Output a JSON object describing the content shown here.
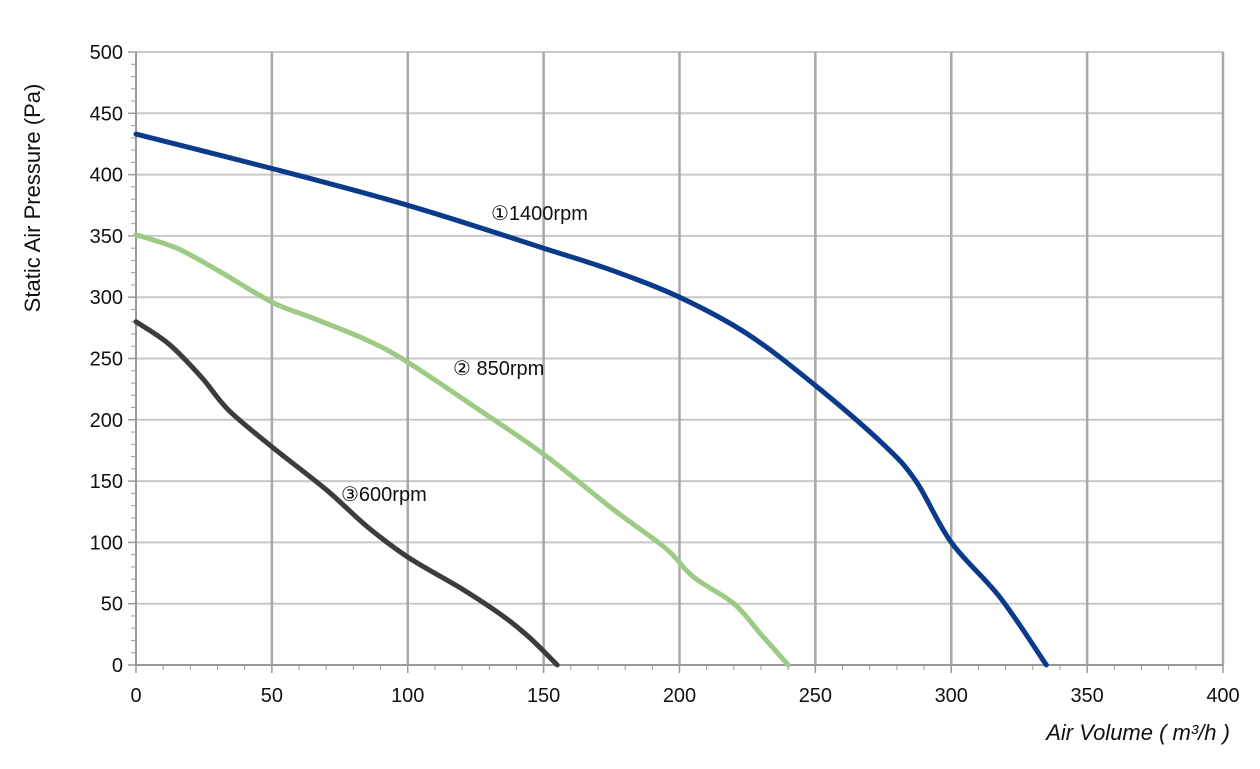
{
  "chart_data": {
    "type": "line",
    "ylabel": "Static Air Pressure  (Pa)",
    "xlabel": "Air Volume ( m³/h )",
    "xlim": [
      0,
      400
    ],
    "ylim": [
      0,
      500
    ],
    "x_ticks": [
      0,
      50,
      100,
      150,
      200,
      250,
      300,
      350,
      400
    ],
    "y_ticks": [
      0,
      50,
      100,
      150,
      200,
      250,
      300,
      350,
      400,
      450,
      500
    ],
    "grid": true,
    "series": [
      {
        "name": "①1400rpm",
        "color": "#0a3a8c",
        "points": [
          [
            0,
            433
          ],
          [
            50,
            405
          ],
          [
            100,
            375
          ],
          [
            150,
            340
          ],
          [
            175,
            322
          ],
          [
            200,
            300
          ],
          [
            225,
            270
          ],
          [
            250,
            228
          ],
          [
            275,
            180
          ],
          [
            287,
            150
          ],
          [
            300,
            100
          ],
          [
            318,
            55
          ],
          [
            335,
            0
          ]
        ]
      },
      {
        "name": "② 850rpm",
        "color": "#9dcb86",
        "points": [
          [
            0,
            351
          ],
          [
            15,
            340
          ],
          [
            30,
            322
          ],
          [
            50,
            296
          ],
          [
            65,
            283
          ],
          [
            85,
            265
          ],
          [
            100,
            247
          ],
          [
            125,
            210
          ],
          [
            150,
            172
          ],
          [
            175,
            128
          ],
          [
            195,
            95
          ],
          [
            205,
            72
          ],
          [
            220,
            50
          ],
          [
            230,
            25
          ],
          [
            240,
            0
          ]
        ]
      },
      {
        "name": "③600rpm",
        "color": "#3c3c3c",
        "points": [
          [
            0,
            280
          ],
          [
            12,
            262
          ],
          [
            24,
            235
          ],
          [
            34,
            208
          ],
          [
            50,
            178
          ],
          [
            70,
            143
          ],
          [
            85,
            113
          ],
          [
            100,
            88
          ],
          [
            120,
            62
          ],
          [
            135,
            40
          ],
          [
            145,
            22
          ],
          [
            155,
            0
          ]
        ]
      }
    ]
  }
}
